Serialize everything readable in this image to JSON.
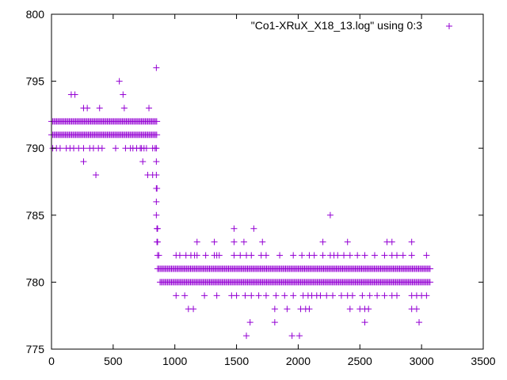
{
  "chart_data": {
    "type": "scatter",
    "title": "",
    "xlabel": "",
    "ylabel": "",
    "xlim": [
      0,
      3500
    ],
    "ylim": [
      775,
      800
    ],
    "xticks": [
      0,
      500,
      1000,
      1500,
      2000,
      2500,
      3000,
      3500
    ],
    "yticks": [
      775,
      780,
      785,
      790,
      795,
      800
    ],
    "xtick_labels": [
      "0",
      "500",
      "1000",
      "1500",
      "2000",
      "2500",
      "3000",
      "3500"
    ],
    "ytick_labels": [
      "775",
      "780",
      "785",
      "790",
      "795",
      "800"
    ],
    "grid": false,
    "legend_position": "top-right",
    "marker": "+",
    "colors": {
      "series": "#9400d3",
      "axes": "#000000",
      "background": "#ffffff"
    },
    "series": [
      {
        "name": "\"Co1-XRuX_X18_13.log\" using 0:3",
        "bands": [
          {
            "y": 791,
            "x_from": 0,
            "x_to": 855,
            "note": "dense band, early phase"
          },
          {
            "y": 792,
            "x_from": 0,
            "x_to": 855,
            "note": "dense band, early phase"
          },
          {
            "y": 781,
            "x_from": 860,
            "x_to": 3070,
            "note": "dense band, late phase"
          },
          {
            "y": 780,
            "x_from": 880,
            "x_to": 3070,
            "note": "dense band, late phase"
          }
        ],
        "points": [
          [
            10,
            790
          ],
          [
            40,
            790
          ],
          [
            70,
            790
          ],
          [
            120,
            790
          ],
          [
            150,
            790
          ],
          [
            180,
            790
          ],
          [
            220,
            790
          ],
          [
            260,
            790
          ],
          [
            310,
            790
          ],
          [
            340,
            790
          ],
          [
            380,
            790
          ],
          [
            410,
            790
          ],
          [
            520,
            790
          ],
          [
            600,
            790
          ],
          [
            640,
            790
          ],
          [
            660,
            790
          ],
          [
            690,
            790
          ],
          [
            720,
            790
          ],
          [
            730,
            790
          ],
          [
            750,
            790
          ],
          [
            770,
            790
          ],
          [
            820,
            790
          ],
          [
            840,
            790
          ],
          [
            850,
            790
          ],
          [
            160,
            794
          ],
          [
            190,
            794
          ],
          [
            260,
            793
          ],
          [
            290,
            793
          ],
          [
            390,
            793
          ],
          [
            550,
            795
          ],
          [
            580,
            794
          ],
          [
            590,
            793
          ],
          [
            790,
            793
          ],
          [
            850,
            796
          ],
          [
            260,
            789
          ],
          [
            360,
            788
          ],
          [
            740,
            789
          ],
          [
            780,
            788
          ],
          [
            820,
            788
          ],
          [
            850,
            789
          ],
          [
            850,
            788
          ],
          [
            850,
            787
          ],
          [
            855,
            787
          ],
          [
            850,
            786
          ],
          [
            850,
            785
          ],
          [
            855,
            784
          ],
          [
            860,
            784
          ],
          [
            855,
            783
          ],
          [
            860,
            783
          ],
          [
            860,
            782
          ],
          [
            870,
            782
          ],
          [
            1010,
            782
          ],
          [
            1040,
            782
          ],
          [
            1090,
            782
          ],
          [
            1130,
            782
          ],
          [
            1160,
            782
          ],
          [
            1180,
            782
          ],
          [
            1250,
            782
          ],
          [
            1320,
            782
          ],
          [
            1340,
            782
          ],
          [
            1360,
            782
          ],
          [
            1480,
            782
          ],
          [
            1530,
            782
          ],
          [
            1580,
            782
          ],
          [
            1620,
            782
          ],
          [
            1700,
            782
          ],
          [
            1740,
            782
          ],
          [
            1850,
            782
          ],
          [
            1960,
            782
          ],
          [
            2030,
            782
          ],
          [
            2090,
            782
          ],
          [
            2130,
            782
          ],
          [
            2200,
            782
          ],
          [
            2260,
            782
          ],
          [
            2290,
            782
          ],
          [
            2320,
            782
          ],
          [
            2370,
            782
          ],
          [
            2420,
            782
          ],
          [
            2480,
            782
          ],
          [
            2540,
            782
          ],
          [
            2620,
            782
          ],
          [
            2700,
            782
          ],
          [
            2760,
            782
          ],
          [
            2800,
            782
          ],
          [
            2850,
            782
          ],
          [
            2920,
            782
          ],
          [
            3040,
            782
          ],
          [
            1180,
            783
          ],
          [
            1320,
            783
          ],
          [
            1480,
            783
          ],
          [
            1560,
            783
          ],
          [
            1710,
            783
          ],
          [
            2200,
            783
          ],
          [
            2400,
            783
          ],
          [
            2720,
            783
          ],
          [
            2760,
            783
          ],
          [
            2920,
            783
          ],
          [
            1480,
            784
          ],
          [
            1640,
            784
          ],
          [
            2260,
            785
          ],
          [
            1010,
            779
          ],
          [
            1080,
            779
          ],
          [
            1240,
            779
          ],
          [
            1340,
            779
          ],
          [
            1460,
            779
          ],
          [
            1500,
            779
          ],
          [
            1570,
            779
          ],
          [
            1620,
            779
          ],
          [
            1680,
            779
          ],
          [
            1740,
            779
          ],
          [
            1820,
            779
          ],
          [
            1890,
            779
          ],
          [
            1960,
            779
          ],
          [
            2040,
            779
          ],
          [
            2080,
            779
          ],
          [
            2110,
            779
          ],
          [
            2150,
            779
          ],
          [
            2180,
            779
          ],
          [
            2230,
            779
          ],
          [
            2280,
            779
          ],
          [
            2350,
            779
          ],
          [
            2400,
            779
          ],
          [
            2440,
            779
          ],
          [
            2520,
            779
          ],
          [
            2580,
            779
          ],
          [
            2640,
            779
          ],
          [
            2700,
            779
          ],
          [
            2760,
            779
          ],
          [
            2800,
            779
          ],
          [
            2920,
            779
          ],
          [
            2960,
            779
          ],
          [
            3000,
            779
          ],
          [
            3040,
            779
          ],
          [
            1110,
            778
          ],
          [
            1150,
            778
          ],
          [
            1810,
            778
          ],
          [
            1910,
            778
          ],
          [
            2020,
            778
          ],
          [
            2060,
            778
          ],
          [
            2090,
            778
          ],
          [
            2420,
            778
          ],
          [
            2500,
            778
          ],
          [
            2540,
            778
          ],
          [
            2570,
            778
          ],
          [
            2920,
            778
          ],
          [
            2960,
            778
          ],
          [
            1810,
            777
          ],
          [
            2540,
            777
          ],
          [
            2980,
            777
          ],
          [
            1610,
            777
          ],
          [
            1580,
            776
          ],
          [
            1950,
            776
          ],
          [
            2010,
            776
          ]
        ]
      }
    ]
  }
}
